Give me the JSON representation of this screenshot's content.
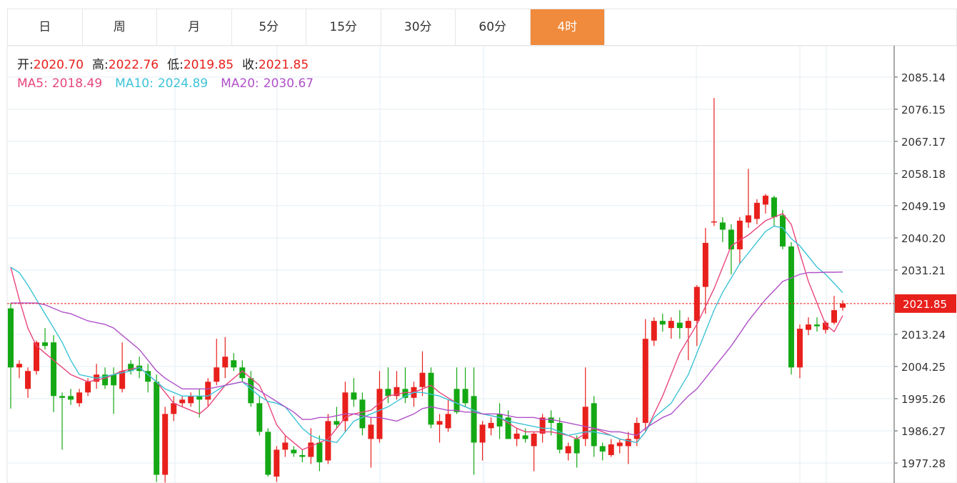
{
  "tabs": [
    "日",
    "周",
    "月",
    "5分",
    "15分",
    "30分",
    "60分",
    "4时"
  ],
  "active_tab": 7,
  "chart_data": {
    "type": "candlestick",
    "up_color": "#e8201c",
    "down_color": "#14a814",
    "grid": true,
    "ylim": [
      1971.7,
      2093.5
    ],
    "yticks": [
      2085.14,
      2076.15,
      2067.17,
      2058.18,
      2049.19,
      {
        "value": 2040.2,
        "label": "2040.20"
      },
      2031.21,
      2013.24,
      2004.25,
      1995.26,
      1986.27,
      1977.28
    ],
    "last_price": {
      "value": 2021.85,
      "label": "2021.85"
    },
    "last_color": "#e8201c",
    "ohlc_labels": [
      {
        "name": "开:",
        "value": 2020.7,
        "label": "2020.70"
      },
      {
        "name": "高:",
        "value": 2022.76,
        "label": "2022.76"
      },
      {
        "name": "低:",
        "value": 2019.85,
        "label": "2019.85"
      },
      {
        "name": "收:",
        "value": 2021.85,
        "label": "2021.85"
      }
    ],
    "candles": [
      [
        2020.5,
        2022,
        1992.5,
        2004
      ],
      [
        2004,
        2006,
        2001,
        2005
      ],
      [
        1998,
        2004,
        1995.5,
        2003
      ],
      [
        2003,
        2011.5,
        2002,
        2011
      ],
      [
        2011,
        2015,
        2009,
        2010
      ],
      [
        2011,
        2013,
        1991.5,
        1996
      ],
      [
        1996,
        1997,
        1981,
        1995.5
      ],
      [
        1996,
        1998,
        1993.5,
        1995
      ],
      [
        1994,
        1998,
        1993,
        1997
      ],
      [
        1997,
        2001,
        1996,
        2000
      ],
      [
        2000,
        2005,
        1998,
        2002
      ],
      [
        2002,
        2004,
        1998,
        1999
      ],
      [
        2002,
        2004,
        1991,
        1999
      ],
      [
        1998,
        2011,
        1997,
        2003
      ],
      [
        2005,
        2006,
        2002,
        2003
      ],
      [
        2004.5,
        2007,
        2001,
        2003
      ],
      [
        2003,
        2005,
        1997,
        2000
      ],
      [
        2000,
        2002,
        1972,
        1974
      ],
      [
        1974,
        1993,
        1971.8,
        1991
      ],
      [
        1991,
        1996,
        1989,
        1994
      ],
      [
        1994,
        1996,
        1993,
        1995
      ],
      [
        1994,
        1997,
        1993,
        1996
      ],
      [
        1996,
        1998,
        1990,
        1995
      ],
      [
        1995,
        2001,
        1993,
        2000
      ],
      [
        2000,
        2012,
        1999,
        2004
      ],
      [
        2004,
        2012.5,
        2001,
        2007
      ],
      [
        2006,
        2008,
        2003,
        2004
      ],
      [
        2004,
        2006,
        2000,
        2001
      ],
      [
        2001,
        2003,
        1993,
        1994
      ],
      [
        1994,
        1996,
        1985,
        1986
      ],
      [
        1986,
        1987,
        1973.5,
        1974
      ],
      [
        1973.5,
        1982,
        1972,
        1981
      ],
      [
        1981,
        1985,
        1979,
        1983
      ],
      [
        1981,
        1982,
        1979,
        1980
      ],
      [
        1979.5,
        1981,
        1977.5,
        1979
      ],
      [
        1979,
        1987,
        1977,
        1983
      ],
      [
        1983,
        1985,
        1975,
        1977.5
      ],
      [
        1978,
        1991,
        1977,
        1989
      ],
      [
        1989,
        1993,
        1987,
        1988
      ],
      [
        1989,
        2000,
        1986,
        1997
      ],
      [
        1997,
        2001,
        1993,
        1995
      ],
      [
        1995,
        1997,
        1985,
        1987
      ],
      [
        1984,
        1990,
        1976,
        1988
      ],
      [
        1984,
        2003,
        1983,
        1998
      ],
      [
        1998,
        2004,
        1994,
        1996
      ],
      [
        1996,
        2003,
        1995,
        1998.5
      ],
      [
        1998,
        2004,
        1994,
        1995.5
      ],
      [
        1995.5,
        2000,
        1993,
        1998.5
      ],
      [
        1998.5,
        2008.5,
        1996,
        2002.5
      ],
      [
        2002.5,
        2004,
        1987,
        1988
      ],
      [
        1988,
        1991,
        1983,
        1989
      ],
      [
        1987,
        1995,
        1986,
        1991
      ],
      [
        1998,
        2004,
        1991,
        1991.5
      ],
      [
        1998,
        2004,
        1993,
        1994
      ],
      [
        1996,
        2004,
        1974,
        1983
      ],
      [
        1983,
        1989,
        1978,
        1988
      ],
      [
        1987,
        1990,
        1985,
        1988.5
      ],
      [
        1991,
        1994,
        1984,
        1987.5
      ],
      [
        1990,
        1992,
        1984,
        1984
      ],
      [
        1984,
        1987,
        1982,
        1985.5
      ],
      [
        1985,
        1987,
        1983,
        1984
      ],
      [
        1982,
        1986,
        1975,
        1985.5
      ],
      [
        1985.5,
        1991,
        1983,
        1990
      ],
      [
        1990,
        1992,
        1985,
        1988.5
      ],
      [
        1988.5,
        1990,
        1980,
        1981
      ],
      [
        1980,
        1983,
        1978,
        1982
      ],
      [
        1984,
        1985,
        1976,
        1980
      ],
      [
        1984,
        2004,
        1982,
        1993
      ],
      [
        1994,
        1996,
        1979,
        1982
      ],
      [
        1982,
        1983,
        1978,
        1980.5
      ],
      [
        1979.5,
        1984,
        1979,
        1982.5
      ],
      [
        1982,
        1984,
        1980,
        1983
      ],
      [
        1982,
        1986,
        1977,
        1984
      ],
      [
        1984,
        1990,
        1982,
        1988.5
      ],
      [
        1988.5,
        2017.5,
        1986,
        2012
      ],
      [
        2011.5,
        2018,
        2010,
        2017
      ],
      [
        2017,
        2019,
        2014,
        2016
      ],
      [
        2015,
        2018,
        2012,
        2017
      ],
      [
        2016.5,
        2020,
        2012,
        2015
      ],
      [
        2015,
        2018,
        2006,
        2017
      ],
      [
        2017,
        2027,
        2010,
        2026.5
      ],
      [
        2026.5,
        2043,
        2019,
        2038.8
      ],
      [
        2044.5,
        2079.3,
        2043.5,
        2044.8
      ],
      [
        2044.5,
        2046,
        2039,
        2042.5
      ],
      [
        2042.5,
        2044,
        2030,
        2037
      ],
      [
        2037,
        2046,
        2033,
        2045
      ],
      [
        2044.5,
        2059.5,
        2043,
        2046.5
      ],
      [
        2045.5,
        2051,
        2044,
        2050
      ],
      [
        2049.5,
        2052.5,
        2047,
        2052
      ],
      [
        2051.5,
        2052,
        2043.5,
        2046
      ],
      [
        2046.5,
        2048,
        2037,
        2037.8
      ],
      [
        2037.8,
        2039,
        2002,
        2004
      ],
      [
        2004,
        2016,
        2001,
        2014.8
      ],
      [
        2014.5,
        2018,
        2013,
        2016
      ],
      [
        2016,
        2018,
        2014,
        2015.5
      ],
      [
        2014.5,
        2017,
        2013.5,
        2016.5
      ],
      [
        2016.5,
        2024,
        2016,
        2020
      ],
      [
        2020.7,
        2022.76,
        2019.85,
        2021.85
      ]
    ],
    "series": [
      {
        "name": "MA5:",
        "color": "#e8467c",
        "values": [
          2032,
          2023,
          2015,
          2010,
          2008,
          2006,
          2004,
          2002,
          2001,
          2000,
          2000.5,
          2001,
          2002,
          2003,
          2003.5,
          2004,
          2002,
          2000,
          1997,
          1994,
          1993,
          1992,
          1991,
          1993,
          1996,
          1999,
          2001,
          2003,
          2001,
          1999,
          1994,
          1988,
          1985,
          1983,
          1981,
          1982,
          1983,
          1984,
          1987,
          1990,
          1991,
          1991.5,
          1992,
          1994,
          1996,
          1996.5,
          1997,
          1997,
          1998,
          1999,
          1997,
          1995.5,
          1994,
          1993,
          1992,
          1991,
          1990.5,
          1990,
          1988.5,
          1987,
          1986,
          1986,
          1986,
          1986,
          1985.5,
          1985,
          1984,
          1985.5,
          1987,
          1986,
          1985,
          1984,
          1983.5,
          1983,
          1986,
          1991,
          1996,
          2002,
          2008,
          2012,
          2016,
          2021,
          2026,
          2032,
          2038,
          2039.5,
          2041,
          2043,
          2045,
          2046,
          2047,
          2044,
          2036,
          2028,
          2022,
          2016,
          2014,
          2018.49
        ]
      },
      {
        "name": "MA10:",
        "color": "#3cc3d6",
        "values": [
          2032,
          2030.5,
          2027,
          2023,
          2019,
          2015,
          2011,
          2006,
          2002,
          2001.5,
          2001,
          2001.5,
          2002,
          2002.5,
          2003,
          2004,
          2002,
          2000,
          1998,
          1997,
          1996,
          1996,
          1996,
          1996,
          1997.5,
          1999,
          1999.5,
          2000,
          1998,
          1996,
          1994.5,
          1994,
          1993,
          1990,
          1987,
          1985,
          1984,
          1983.5,
          1983,
          1986,
          1989,
          1990,
          1991,
          1992,
          1993,
          1994.5,
          1996,
          1997,
          1997,
          1996.5,
          1996,
          1995,
          1994,
          1993,
          1992,
          1991,
          1990.5,
          1990,
          1989,
          1988.5,
          1988,
          1987.5,
          1987,
          1987,
          1986,
          1985,
          1985.5,
          1986,
          1986,
          1985.5,
          1985,
          1984,
          1983.5,
          1983,
          1986,
          1990,
          1992,
          1994,
          1998,
          2002,
          2008,
          2014,
          2020,
          2025,
          2029,
          2033,
          2036,
          2039,
          2042,
          2043.5,
          2043,
          2040,
          2038,
          2035,
          2032,
          2030,
          2027.5,
          2024.89
        ]
      },
      {
        "name": "MA20:",
        "color": "#b050c8",
        "values": [
          2022,
          2022,
          2022,
          2022,
          2021.5,
          2020.5,
          2019.5,
          2019,
          2018,
          2017,
          2016.5,
          2016,
          2015,
          2013,
          2011,
          2009,
          2006,
          2003,
          2001,
          1999.5,
          1998,
          1998,
          1998,
          1998,
          1998.5,
          1999,
          1999.5,
          2000,
          1999,
          1997.5,
          1996,
          1994.5,
          1993,
          1991.5,
          1989.5,
          1989.5,
          1990,
          1990,
          1990.5,
          1991,
          1991,
          1990.5,
          1990,
          1990,
          1989.5,
          1989,
          1990,
          1991,
          1992.5,
          1993,
          1992.5,
          1992,
          1992,
          1991.5,
          1991.5,
          1991,
          1991,
          1991,
          1990.5,
          1990,
          1990,
          1990,
          1989.5,
          1989.5,
          1989,
          1988.5,
          1988,
          1987.5,
          1987,
          1986.5,
          1986,
          1986,
          1985.5,
          1985,
          1987,
          1988.5,
          1990,
          1991,
          1993.5,
          1996,
          1998,
          2001,
          2004,
          2007,
          2010,
          2013.5,
          2017,
          2020,
          2023,
          2025.5,
          2028,
          2029,
          2030,
          2030.5,
          2030.5,
          2030.6,
          2030.6,
          2030.67
        ]
      }
    ]
  }
}
